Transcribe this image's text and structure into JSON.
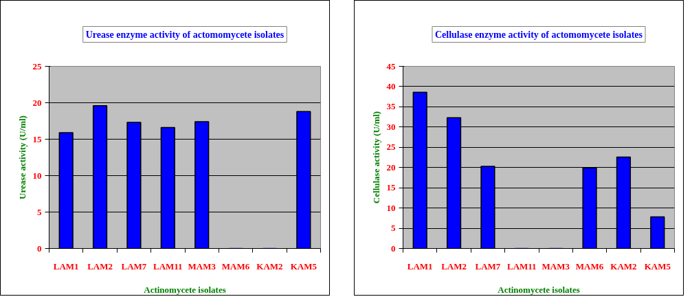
{
  "chart_data": [
    {
      "type": "bar",
      "title": "Urease enzyme activity of actomomycete isolates",
      "xlabel": "Actinomycete isolates",
      "ylabel": "Urease activity (U/ml)",
      "categories": [
        "LAM1",
        "LAM2",
        "LAM7",
        "LAM11",
        "MAM3",
        "MAM6",
        "KAM2",
        "KAM5"
      ],
      "values": [
        15.9,
        19.6,
        17.3,
        16.6,
        17.4,
        0,
        0,
        18.8
      ],
      "color": "#0000ff",
      "ylim": [
        0,
        25
      ],
      "yticks": [
        0,
        5,
        10,
        15,
        20,
        25
      ],
      "grid": "y"
    },
    {
      "type": "bar",
      "title": "Cellulase enzyme activity of actomomycete isolates",
      "xlabel": "Actinomycete isolates",
      "ylabel": "Cellulase activity (U/ml)",
      "categories": [
        "LAM1",
        "LAM2",
        "LAM7",
        "LAM11",
        "MAM3",
        "MAM6",
        "KAM2",
        "KAM5"
      ],
      "values": [
        38.6,
        32.3,
        20.3,
        0,
        0,
        19.9,
        22.6,
        7.8
      ],
      "color": "#0000ff",
      "ylim": [
        0,
        45
      ],
      "yticks": [
        0,
        5,
        10,
        15,
        20,
        25,
        30,
        35,
        40,
        45
      ],
      "grid": "y"
    }
  ]
}
